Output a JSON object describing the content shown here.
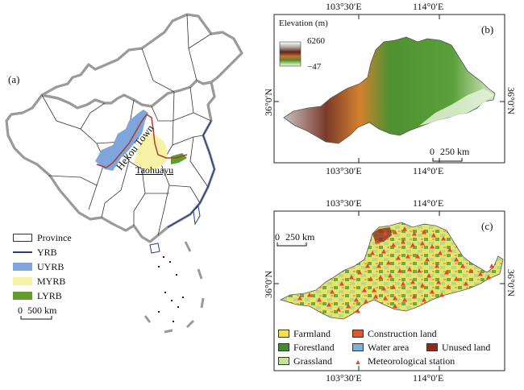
{
  "panel_a": {
    "label": "(a)",
    "place_labels": {
      "hekou": "Hekou Town",
      "taohuayu": "Taohuayu"
    },
    "legend": [
      {
        "name": "Province",
        "kind": "box",
        "color": "#ffffff"
      },
      {
        "name": "YRB",
        "kind": "line",
        "color": "#21408a"
      },
      {
        "name": "UYRB",
        "kind": "box",
        "color": "#7ea6dc"
      },
      {
        "name": "MYRB",
        "kind": "box",
        "color": "#f6f2a6"
      },
      {
        "name": "LYRB",
        "kind": "box",
        "color": "#5f9e2c"
      }
    ],
    "scale": {
      "zero": "0",
      "label": "500 km"
    }
  },
  "panel_b": {
    "label": "(b)",
    "elevation_title": "Elevation (m)",
    "elevation_max": "6260",
    "elevation_min": "−47",
    "top_ticks": [
      "103°30′E",
      "114°0′E"
    ],
    "bottom_ticks": [
      "103°30′E",
      "114°0′E"
    ],
    "left_tick": "36°0′N",
    "right_tick": "36°0′N",
    "scale": {
      "zero": "0",
      "label": "250 km"
    }
  },
  "panel_c": {
    "label": "(c)",
    "top_ticks": [
      "103°30′E",
      "114°0′E"
    ],
    "bottom_ticks": [
      "103°30′E",
      "114°0′E"
    ],
    "left_tick": "36°0′N",
    "right_tick": "36°0′N",
    "scale": {
      "zero": "0",
      "label": "250 km"
    },
    "legend": [
      {
        "name": "Farmland",
        "color": "#f2e24a",
        "kind": "box"
      },
      {
        "name": "Construction land",
        "color": "#e2562a",
        "kind": "box"
      },
      {
        "name": "Forestland",
        "color": "#3d8f2d",
        "kind": "box"
      },
      {
        "name": "Water area",
        "color": "#7fb0d6",
        "kind": "box"
      },
      {
        "name": "Unused land",
        "color": "#8e2a20",
        "kind": "box"
      },
      {
        "name": "Grassland",
        "color": "#c6e19a",
        "kind": "box"
      },
      {
        "name": "Meteorological station",
        "color": "#e8452a",
        "kind": "triangle"
      }
    ]
  }
}
